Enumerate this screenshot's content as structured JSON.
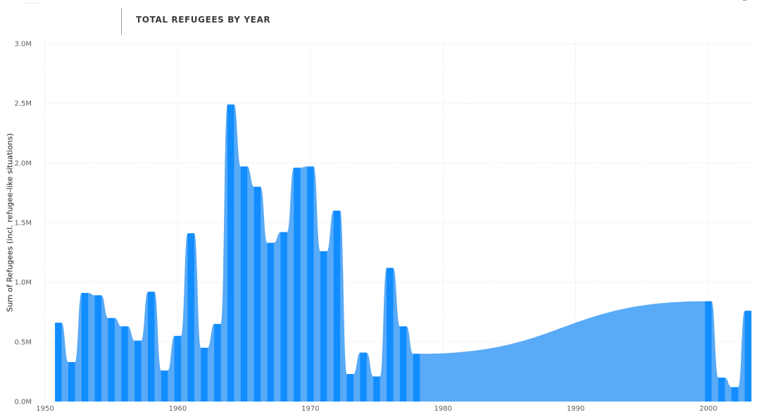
{
  "title": "TOTAL REFUGEES BY YEAR",
  "chart_data": {
    "type": "area",
    "title": "TOTAL REFUGEES BY YEAR",
    "xlabel": "",
    "ylabel": "Sum of Refugees (incl. refugee-like situations)",
    "xlim": [
      1950,
      2003.3
    ],
    "ylim": [
      0,
      3000000
    ],
    "x_ticks": [
      "1950",
      "1960",
      "1970",
      "1980",
      "1990",
      "2000"
    ],
    "y_ticks": [
      "0.0M",
      "0.5M",
      "1.0M",
      "1.5M",
      "2.0M",
      "2.5M",
      "3.0M"
    ],
    "grid": true,
    "colors": {
      "area": "#59aaf7",
      "bar": "#118dff"
    },
    "series": [
      {
        "x": [
          1951,
          1952,
          1953,
          1954,
          1955,
          1956,
          1957,
          1958,
          1959,
          1960,
          1961,
          1962,
          1963,
          1964,
          1965,
          1966,
          1967,
          1968,
          1969,
          1970,
          1971,
          1972,
          1973,
          1974,
          1975,
          1976,
          1977,
          1978,
          2000,
          2001,
          2002,
          2003
        ],
        "values": [
          660000,
          330000,
          910000,
          890000,
          700000,
          630000,
          510000,
          920000,
          260000,
          550000,
          1410000,
          450000,
          650000,
          2490000,
          1970000,
          1800000,
          1330000,
          1420000,
          1960000,
          1970000,
          1260000,
          1600000,
          230000,
          410000,
          210000,
          1120000,
          630000,
          400000,
          840000,
          200000,
          120000,
          760000
        ]
      }
    ]
  }
}
